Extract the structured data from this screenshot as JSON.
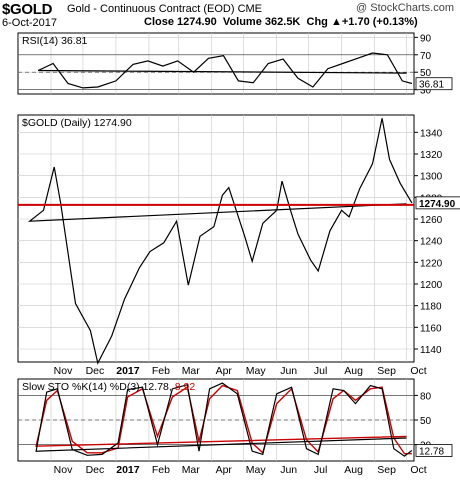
{
  "header": {
    "symbol": "$GOLD",
    "description": "Gold - Continuous Contract (EOD)",
    "exchange": "CME",
    "date": "6-Oct-2017",
    "close_label": "Close",
    "close_value": "1274.90",
    "volume_label": "Volume",
    "volume_value": "362.5K",
    "chg_label": "Chg",
    "chg_value": "+1.70 (+0.13%)",
    "chg_arrow": "▲",
    "brand": "@ StockCharts.com"
  },
  "colors": {
    "price_line": "#000000",
    "support_line": "#cc0000",
    "stoch_k": "#000000",
    "stoch_d": "#cc0000",
    "grid": "#c8c8c8",
    "panel_border": "#000000"
  },
  "chart_data": [
    {
      "type": "line",
      "title": "RSI(14) 36.81",
      "label_text": "RSI(14)",
      "current_value": 36.81,
      "current_label": "36.81",
      "ylim": [
        25,
        95
      ],
      "y_ticks": [
        30,
        50,
        70,
        90
      ],
      "ref_lines": [
        30,
        50,
        70
      ],
      "x_dates": [
        "2017-10-01",
        "2016-10-20",
        "2016-11-03",
        "2016-11-17",
        "2016-12-01",
        "2016-12-15",
        "2017-01-01",
        "2017-01-17",
        "2017-01-31",
        "2017-02-14",
        "2017-02-28",
        "2017-03-15",
        "2017-03-29",
        "2017-04-12",
        "2017-04-26",
        "2017-05-10",
        "2017-05-24",
        "2017-06-07",
        "2017-06-21",
        "2017-07-05",
        "2017-07-19",
        "2017-08-02",
        "2017-08-16",
        "2017-08-30",
        "2017-09-13",
        "2017-09-27",
        "2017-10-06"
      ],
      "values": [
        49,
        52,
        60,
        37,
        32,
        33,
        40,
        59,
        63,
        57,
        63,
        50,
        66,
        69,
        40,
        38,
        60,
        65,
        43,
        33,
        54,
        60,
        66,
        72,
        70,
        40,
        37
      ]
    },
    {
      "type": "line",
      "title": "$GOLD (Daily) 1274.90",
      "label_text": "$GOLD (Daily)",
      "current_value": 1274.9,
      "current_label": "1274.90",
      "ylim": [
        1128,
        1356
      ],
      "y_ticks": [
        1140,
        1160,
        1180,
        1200,
        1220,
        1240,
        1260,
        1280,
        1300,
        1320,
        1340
      ],
      "support_level": 1273,
      "x_dates": [
        "2017-10-01",
        "2016-10-12",
        "2016-10-25",
        "2016-11-04",
        "2016-11-10",
        "2016-11-24",
        "2016-12-08",
        "2016-12-15",
        "2016-12-28",
        "2017-01-09",
        "2017-01-23",
        "2017-02-02",
        "2017-02-15",
        "2017-02-27",
        "2017-03-10",
        "2017-03-21",
        "2017-04-03",
        "2017-04-11",
        "2017-04-17",
        "2017-05-02",
        "2017-05-09",
        "2017-05-19",
        "2017-06-01",
        "2017-06-06",
        "2017-06-14",
        "2017-06-21",
        "2017-07-03",
        "2017-07-10",
        "2017-07-21",
        "2017-08-01",
        "2017-08-08",
        "2017-08-18",
        "2017-08-30",
        "2017-09-08",
        "2017-09-15",
        "2017-09-25",
        "2017-10-06"
      ],
      "values": [
        1274,
        1258,
        1268,
        1308,
        1275,
        1182,
        1157,
        1127,
        1152,
        1186,
        1215,
        1230,
        1238,
        1258,
        1199,
        1244,
        1253,
        1282,
        1289,
        1244,
        1221,
        1256,
        1268,
        1295,
        1268,
        1246,
        1222,
        1212,
        1249,
        1268,
        1262,
        1288,
        1311,
        1353,
        1315,
        1293,
        1274.9
      ]
    },
    {
      "type": "line",
      "title": "Slow STO %K(14) %D(3) 12.78, 8.92",
      "label_text": "Slow STO %K(14) %D(3)",
      "k_label": "12.78,",
      "d_label": "8.92",
      "current_k_label": "12.78",
      "ylim": [
        0,
        100
      ],
      "y_ticks": [
        20,
        50,
        80
      ],
      "ref_lines": [
        20,
        50,
        80
      ],
      "x_dates": [
        "2017-10-01",
        "2016-10-18",
        "2016-10-28",
        "2016-11-07",
        "2016-11-21",
        "2016-12-05",
        "2016-12-19",
        "2017-01-03",
        "2017-01-12",
        "2017-01-26",
        "2017-02-09",
        "2017-02-23",
        "2017-03-09",
        "2017-03-20",
        "2017-03-30",
        "2017-04-11",
        "2017-04-25",
        "2017-05-09",
        "2017-05-19",
        "2017-06-01",
        "2017-06-15",
        "2017-06-29",
        "2017-07-10",
        "2017-07-24",
        "2017-08-03",
        "2017-08-14",
        "2017-08-28",
        "2017-09-08",
        "2017-09-19",
        "2017-09-29",
        "2017-10-06"
      ],
      "series": [
        {
          "name": "%K(14)",
          "values": [
            28,
            12,
            84,
            88,
            14,
            7,
            8,
            22,
            87,
            90,
            20,
            88,
            93,
            12,
            88,
            95,
            82,
            12,
            8,
            82,
            90,
            15,
            8,
            88,
            86,
            70,
            92,
            88,
            15,
            6,
            12.78
          ]
        },
        {
          "name": "%D(3)",
          "values": [
            30,
            18,
            74,
            86,
            24,
            10,
            10,
            16,
            78,
            88,
            30,
            78,
            90,
            24,
            76,
            92,
            86,
            22,
            10,
            70,
            88,
            26,
            11,
            76,
            86,
            74,
            88,
            90,
            28,
            9,
            8.92
          ]
        }
      ]
    }
  ],
  "x_axis": {
    "dates": [
      "2016-11-01",
      "2016-12-01",
      "2017-01-01",
      "2017-02-01",
      "2017-03-01",
      "2017-04-01",
      "2017-05-01",
      "2017-06-01",
      "2017-07-01",
      "2017-08-01",
      "2017-09-01",
      "2017-10-01"
    ],
    "labels": [
      "Nov",
      "Dec",
      "2017",
      "Feb",
      "Mar",
      "Apr",
      "May",
      "Jun",
      "Jul",
      "Aug",
      "Sep",
      "Oct"
    ]
  }
}
